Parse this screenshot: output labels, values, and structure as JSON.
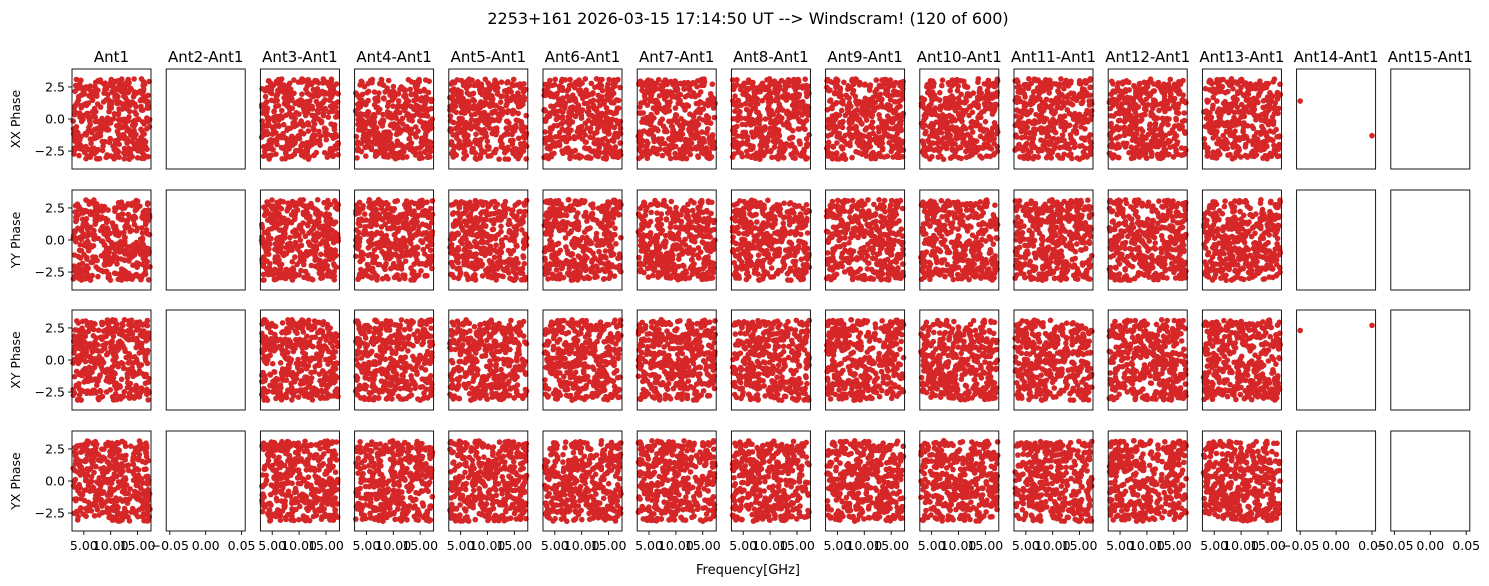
{
  "figure": {
    "title": "2253+161 2026-03-15 17:14:50 UT --> Windscram! (120 of 600)",
    "xlabel": "Frequency[GHz]"
  },
  "chart_data": {
    "type": "scatter",
    "layout": "grid of 4 rows x 15 columns of scatter subplots",
    "marker_color": "#d62728",
    "columns": [
      "Ant1",
      "Ant2-Ant1",
      "Ant3-Ant1",
      "Ant4-Ant1",
      "Ant5-Ant1",
      "Ant6-Ant1",
      "Ant7-Ant1",
      "Ant8-Ant1",
      "Ant9-Ant1",
      "Ant10-Ant1",
      "Ant11-Ant1",
      "Ant12-Ant1",
      "Ant13-Ant1",
      "Ant14-Ant1",
      "Ant15-Ant1"
    ],
    "rows": [
      "XX Phase",
      "YY Phase",
      "XY Phase",
      "YX Phase"
    ],
    "ylim": [
      -3.9,
      3.9
    ],
    "yticks": [
      "2.5",
      "0.0",
      "−2.5"
    ],
    "ytick_values": [
      2.5,
      0.0,
      -2.5
    ],
    "xticks_freq": [
      "5.00",
      "10.00",
      "15.00"
    ],
    "xtick_values_freq": [
      5.0,
      10.0,
      15.0
    ],
    "xlim_freq": [
      2.8,
      17.5
    ],
    "xticks_empty": [
      "−0.05",
      "0.00",
      "0.05"
    ],
    "xtick_values_empty": [
      -0.05,
      0.0,
      0.05
    ],
    "xlim_empty": [
      -0.055,
      0.055
    ],
    "dense_columns": [
      0,
      2,
      3,
      4,
      5,
      6,
      7,
      8,
      9,
      10,
      11,
      12
    ],
    "empty_columns": [
      1,
      13,
      14
    ],
    "points_per_dense_panel": 400,
    "dense_phase_range": [
      -3.14,
      3.14
    ],
    "dense_freq_range": [
      3.0,
      17.3
    ],
    "sparse_points": [
      {
        "row": 0,
        "col": 13,
        "points": [
          {
            "x": -0.05,
            "y": 1.4
          },
          {
            "x": 0.05,
            "y": -1.3
          }
        ]
      },
      {
        "row": 2,
        "col": 13,
        "points": [
          {
            "x": -0.05,
            "y": 2.3
          },
          {
            "x": 0.05,
            "y": 2.7
          }
        ]
      }
    ]
  }
}
